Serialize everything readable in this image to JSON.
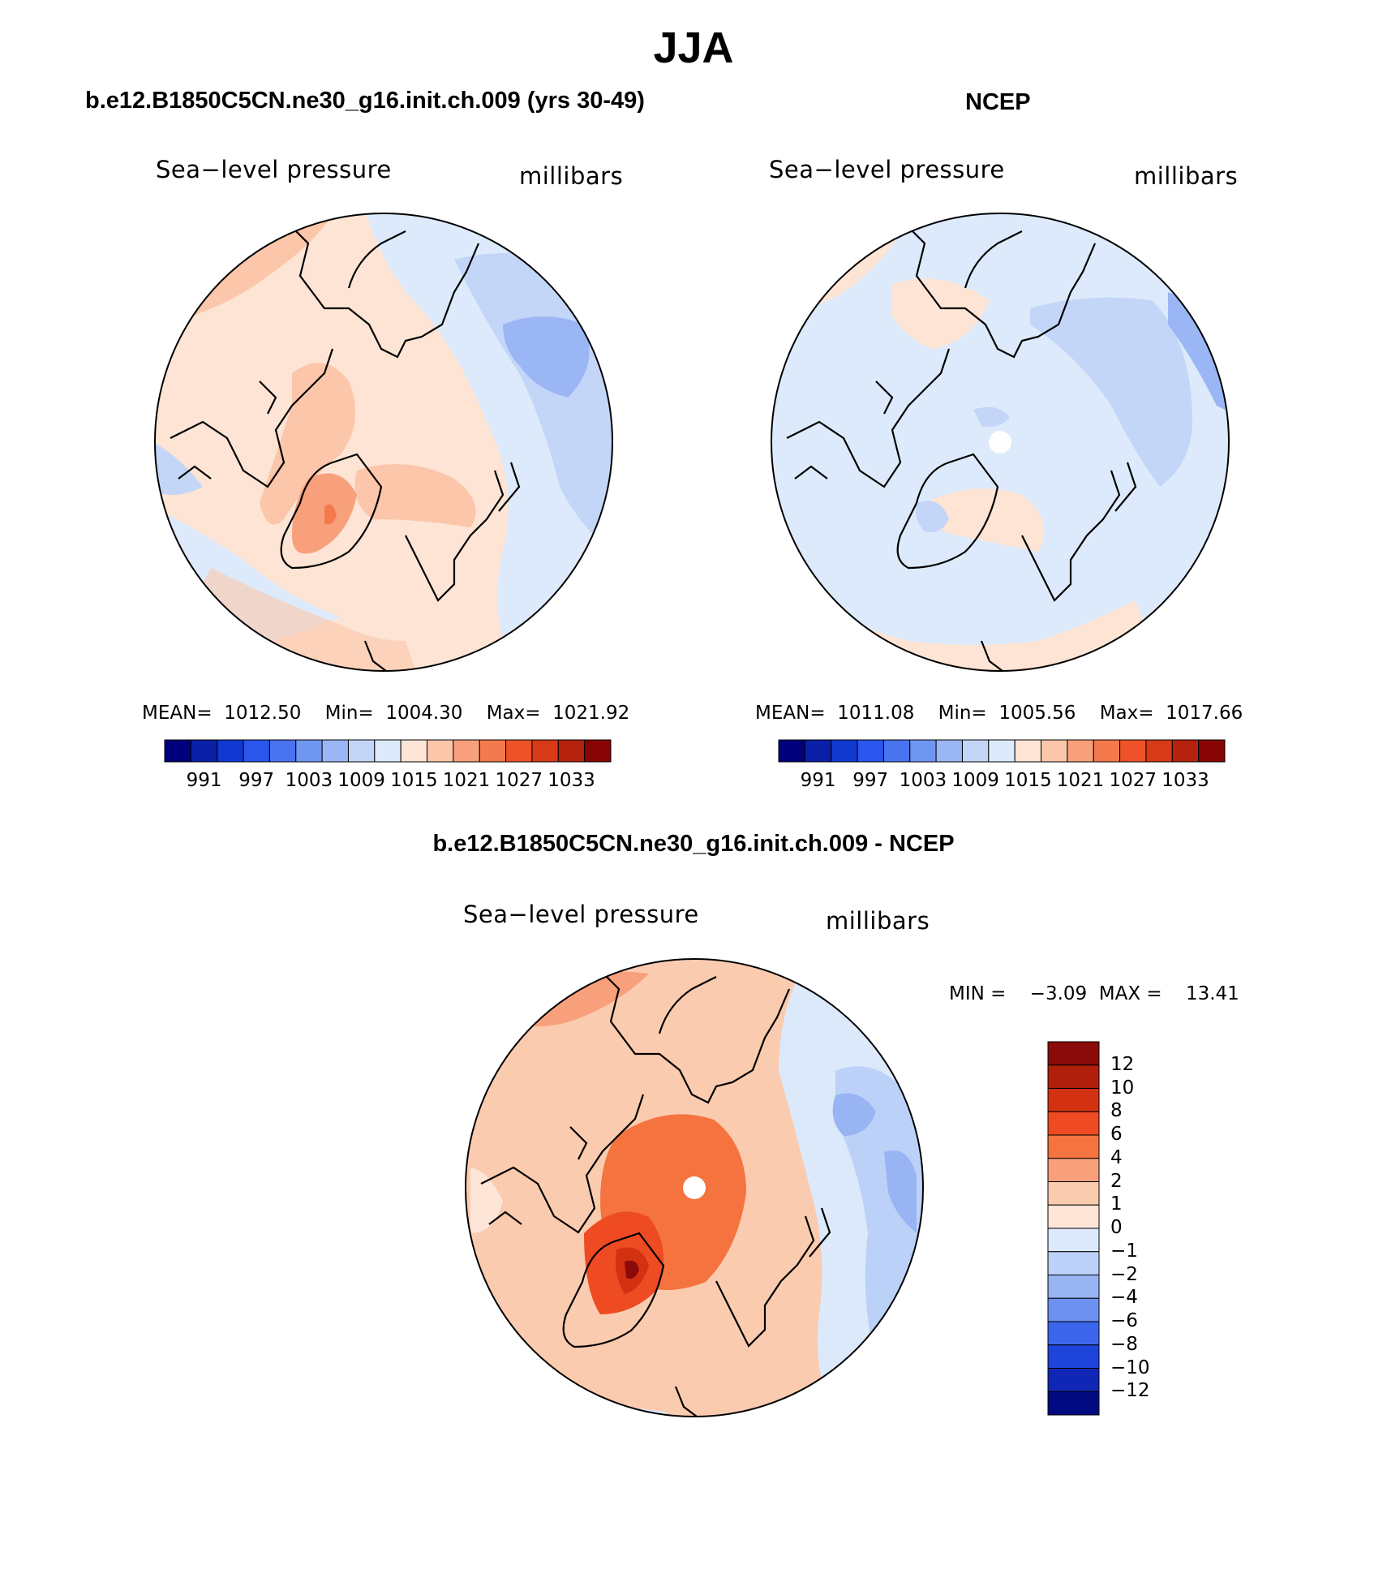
{
  "chart_data": [
    {
      "type": "heatmap",
      "panel": "model",
      "title": "b.e12.B1850C5CN.ne30_g16.init.ch.009 (yrs 30-49)",
      "field_label": "Sea−level pressure",
      "units": "millibars",
      "stats": {
        "mean_label": "MEAN=",
        "mean": "1012.50",
        "min_label": "Min=",
        "min": "1004.30",
        "max_label": "Max=",
        "max": "1021.92"
      },
      "colorbar_ticks": [
        "991",
        "997",
        "1003",
        "1009",
        "1015",
        "1021",
        "1027",
        "1033"
      ],
      "contour_levels": [
        985,
        988,
        991,
        994,
        997,
        1000,
        1003,
        1006,
        1009,
        1012,
        1015,
        1018,
        1021,
        1024,
        1027,
        1030,
        1033
      ]
    },
    {
      "type": "heatmap",
      "panel": "observed",
      "title": "NCEP",
      "field_label": "Sea−level pressure",
      "units": "millibars",
      "stats": {
        "mean_label": "MEAN=",
        "mean": "1011.08",
        "min_label": "Min=",
        "min": "1005.56",
        "max_label": "Max=",
        "max": "1017.66"
      },
      "colorbar_ticks": [
        "991",
        "997",
        "1003",
        "1009",
        "1015",
        "1021",
        "1027",
        "1033"
      ],
      "contour_levels": [
        985,
        988,
        991,
        994,
        997,
        1000,
        1003,
        1006,
        1009,
        1012,
        1015,
        1018,
        1021,
        1024,
        1027,
        1030,
        1033
      ]
    },
    {
      "type": "heatmap",
      "panel": "difference",
      "title": "b.e12.B1850C5CN.ne30_g16.init.ch.009 - NCEP",
      "field_label": "Sea−level pressure",
      "units": "millibars",
      "stats": {
        "min_label": "MIN =",
        "min": "−3.09",
        "max_label": "MAX =",
        "max": "13.41"
      },
      "colorbar_ticks": [
        "12",
        "10",
        "8",
        "6",
        "4",
        "2",
        "1",
        "0",
        "−1",
        "−2",
        "−4",
        "−6",
        "−8",
        "−10",
        "−12"
      ]
    }
  ],
  "page": {
    "season": "JJA"
  },
  "colors": {
    "slp_scale": [
      "#00007a",
      "#0a1fa8",
      "#1238d2",
      "#2a56ee",
      "#4a73ef",
      "#7097f0",
      "#9bb6f4",
      "#c4d6f8",
      "#ddeafb",
      "#fde4d4",
      "#fbc6aa",
      "#f8a07c",
      "#f47a4e",
      "#ee5228",
      "#d63a17",
      "#b5220e",
      "#870404"
    ],
    "diff_scale": [
      "#8b0a0a",
      "#b01f0c",
      "#d23212",
      "#ee4b22",
      "#f4733f",
      "#f7a07b",
      "#fbcbb0",
      "#fde6d8",
      "#dce9fb",
      "#bcd1f8",
      "#98b4f3",
      "#6c91ef",
      "#3b66ec",
      "#1e44dc",
      "#0f27b4",
      "#010a80"
    ]
  }
}
